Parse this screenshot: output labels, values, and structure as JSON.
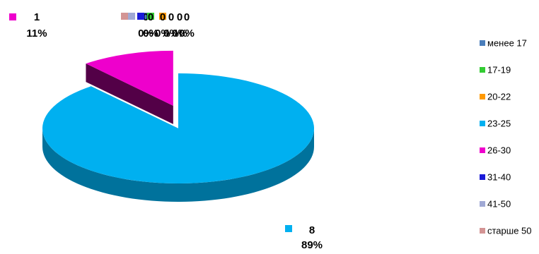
{
  "chart_data": {
    "type": "pie",
    "style": "3d-exploded",
    "categories": [
      "менее 17",
      "17-19",
      "20-22",
      "23-25",
      "26-30",
      "31-40",
      "41-50",
      "старше 50"
    ],
    "values": [
      0,
      0,
      0,
      8,
      1,
      0,
      0,
      0
    ],
    "percent_labels": [
      "0%",
      "0%",
      "0%",
      "89%",
      "11%",
      "0%",
      "0%",
      "0%"
    ],
    "colors": [
      "#4a7ebb",
      "#33cc33",
      "#ff9900",
      "#00b0f0",
      "#ee00cc",
      "#1a1ad8",
      "#a0a9d5",
      "#d39494"
    ],
    "exploded": [
      "26-30"
    ],
    "legend_position": "right",
    "title": "",
    "xlabel": "",
    "ylabel": ""
  }
}
